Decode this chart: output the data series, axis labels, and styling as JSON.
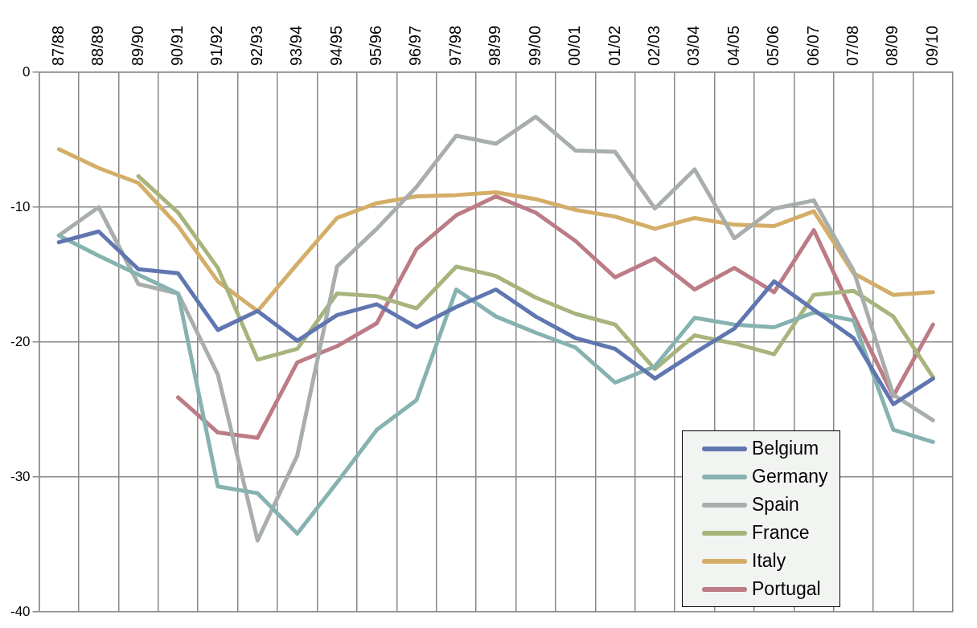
{
  "chart_data": {
    "type": "line",
    "categories": [
      "87/88",
      "88/89",
      "89/90",
      "90/91",
      "91/92",
      "92/93",
      "93/94",
      "94/95",
      "95/96",
      "96/97",
      "97/98",
      "98/99",
      "99/00",
      "00/01",
      "01/02",
      "02/03",
      "03/04",
      "04/05",
      "05/06",
      "06/07",
      "07/08",
      "08/09",
      "09/10"
    ],
    "series": [
      {
        "name": "Belgium",
        "color": "#6076b0",
        "values": [
          -12.6,
          -11.8,
          -14.6,
          -14.9,
          -19.1,
          -17.7,
          -19.9,
          -18.0,
          -17.2,
          -18.9,
          -17.4,
          -16.1,
          -18.1,
          -19.7,
          -20.5,
          -22.7,
          -20.8,
          -19.0,
          -15.5,
          -17.6,
          -19.7,
          -24.6,
          -22.7
        ]
      },
      {
        "name": "Germany",
        "color": "#86b2b0",
        "values": [
          -12.1,
          -13.6,
          -15.0,
          -16.4,
          -30.7,
          -31.2,
          -34.2,
          -30.4,
          -26.5,
          -24.3,
          -16.1,
          -18.1,
          -19.3,
          -20.4,
          -23.0,
          -21.8,
          -18.2,
          -18.7,
          -18.9,
          -17.8,
          -18.4,
          -26.5,
          -27.4
        ]
      },
      {
        "name": "Spain",
        "color": "#a8aeab",
        "values": [
          -12.1,
          -10.0,
          -15.7,
          -16.4,
          -22.4,
          -34.7,
          -28.4,
          -14.4,
          -11.6,
          -8.5,
          -4.7,
          -5.3,
          -3.3,
          -5.8,
          -5.9,
          -10.1,
          -7.2,
          -12.3,
          -10.1,
          -9.5,
          -14.7,
          -23.9,
          -25.8
        ]
      },
      {
        "name": "France",
        "color": "#a7b47c",
        "values": [
          null,
          null,
          -7.7,
          -10.4,
          -14.5,
          -21.3,
          -20.5,
          -16.4,
          -16.6,
          -17.5,
          -14.4,
          -15.1,
          -16.7,
          -17.9,
          -18.7,
          -22.0,
          -19.5,
          -20.1,
          -20.9,
          -16.5,
          -16.2,
          -18.1,
          -22.6
        ]
      },
      {
        "name": "Italy",
        "color": "#d4ae68",
        "values": [
          -5.7,
          -7.1,
          -8.2,
          -11.4,
          -15.5,
          -17.7,
          -14.2,
          -10.8,
          -9.7,
          -9.2,
          -9.1,
          -8.9,
          -9.4,
          -10.2,
          -10.7,
          -11.6,
          -10.8,
          -11.3,
          -11.4,
          -10.3,
          -14.9,
          -16.5,
          -16.3
        ]
      },
      {
        "name": "Portugal",
        "color": "#bc7c85",
        "values": [
          null,
          null,
          null,
          -24.1,
          -26.7,
          -27.1,
          -21.5,
          -20.3,
          -18.6,
          -13.1,
          -10.6,
          -9.2,
          -10.4,
          -12.5,
          -15.2,
          -13.8,
          -16.1,
          -14.5,
          -16.3,
          -11.7,
          -18.0,
          -24.0,
          -18.7
        ]
      }
    ],
    "ylim": [
      -40,
      0
    ],
    "yticks": [
      0,
      -10,
      -20,
      -30,
      -40
    ],
    "grid": true,
    "legend": "bottom right",
    "marker": "none",
    "line_style": "solid"
  }
}
